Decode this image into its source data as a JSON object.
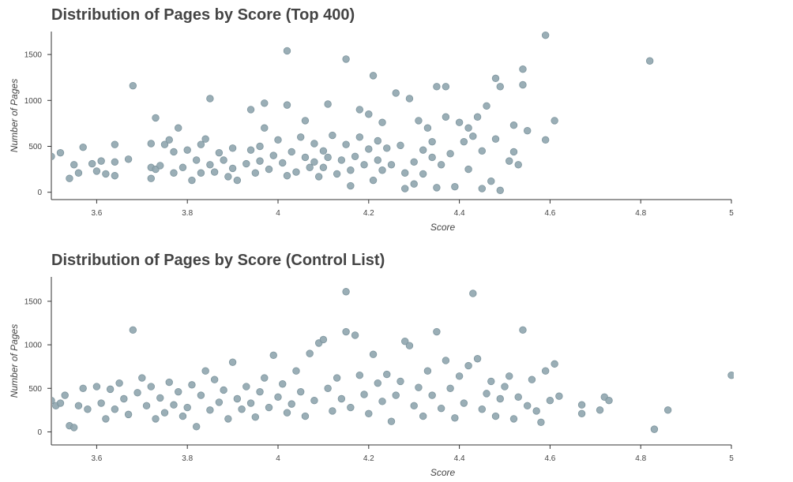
{
  "chart_data": [
    {
      "type": "scatter",
      "title": "Distribution of Pages by Score (Top 400)",
      "xlabel": "Score",
      "ylabel": "Number of Pages",
      "xlim": [
        3.5,
        5.0
      ],
      "ylim": [
        -80,
        1750
      ],
      "x_ticks": [
        3.6,
        3.8,
        4.0,
        4.2,
        4.4,
        4.6,
        4.8,
        5.0
      ],
      "x_tick_labels": [
        "3.6",
        "3.8",
        "4",
        "4.2",
        "4.4",
        "4.6",
        "4.8",
        "5"
      ],
      "y_ticks": [
        0,
        500,
        1000,
        1500
      ],
      "y_tick_labels": [
        "0",
        "500",
        "1000",
        "1500"
      ],
      "grid": false,
      "marker_color": "#8fa5ae",
      "marker_edge_color": "#7e959e",
      "points": [
        [
          3.5,
          390
        ],
        [
          3.52,
          430
        ],
        [
          3.54,
          150
        ],
        [
          3.55,
          300
        ],
        [
          3.56,
          210
        ],
        [
          3.57,
          490
        ],
        [
          3.59,
          310
        ],
        [
          3.6,
          230
        ],
        [
          3.61,
          340
        ],
        [
          3.62,
          200
        ],
        [
          3.64,
          520
        ],
        [
          3.64,
          330
        ],
        [
          3.64,
          180
        ],
        [
          3.67,
          360
        ],
        [
          3.68,
          1160
        ],
        [
          3.72,
          530
        ],
        [
          3.72,
          270
        ],
        [
          3.72,
          150
        ],
        [
          3.73,
          810
        ],
        [
          3.73,
          250
        ],
        [
          3.74,
          290
        ],
        [
          3.75,
          520
        ],
        [
          3.76,
          570
        ],
        [
          3.77,
          210
        ],
        [
          3.77,
          440
        ],
        [
          3.78,
          700
        ],
        [
          3.79,
          270
        ],
        [
          3.8,
          460
        ],
        [
          3.81,
          130
        ],
        [
          3.82,
          350
        ],
        [
          3.83,
          210
        ],
        [
          3.83,
          520
        ],
        [
          3.84,
          580
        ],
        [
          3.85,
          1020
        ],
        [
          3.85,
          300
        ],
        [
          3.86,
          220
        ],
        [
          3.87,
          430
        ],
        [
          3.88,
          350
        ],
        [
          3.89,
          170
        ],
        [
          3.9,
          480
        ],
        [
          3.9,
          260
        ],
        [
          3.91,
          130
        ],
        [
          3.93,
          310
        ],
        [
          3.94,
          900
        ],
        [
          3.94,
          460
        ],
        [
          3.95,
          210
        ],
        [
          3.96,
          340
        ],
        [
          3.96,
          500
        ],
        [
          3.97,
          970
        ],
        [
          3.97,
          700
        ],
        [
          3.98,
          250
        ],
        [
          3.99,
          400
        ],
        [
          4.0,
          570
        ],
        [
          4.01,
          320
        ],
        [
          4.02,
          1540
        ],
        [
          4.02,
          950
        ],
        [
          4.02,
          180
        ],
        [
          4.03,
          440
        ],
        [
          4.04,
          220
        ],
        [
          4.05,
          600
        ],
        [
          4.06,
          380
        ],
        [
          4.06,
          780
        ],
        [
          4.07,
          270
        ],
        [
          4.08,
          530
        ],
        [
          4.08,
          330
        ],
        [
          4.09,
          170
        ],
        [
          4.1,
          450
        ],
        [
          4.1,
          270
        ],
        [
          4.11,
          960
        ],
        [
          4.11,
          380
        ],
        [
          4.12,
          620
        ],
        [
          4.13,
          200
        ],
        [
          4.14,
          350
        ],
        [
          4.15,
          1450
        ],
        [
          4.15,
          520
        ],
        [
          4.16,
          240
        ],
        [
          4.16,
          70
        ],
        [
          4.17,
          390
        ],
        [
          4.18,
          900
        ],
        [
          4.18,
          600
        ],
        [
          4.19,
          300
        ],
        [
          4.2,
          470
        ],
        [
          4.2,
          850
        ],
        [
          4.21,
          130
        ],
        [
          4.21,
          1270
        ],
        [
          4.22,
          560
        ],
        [
          4.22,
          350
        ],
        [
          4.23,
          240
        ],
        [
          4.23,
          760
        ],
        [
          4.24,
          480
        ],
        [
          4.25,
          300
        ],
        [
          4.26,
          1080
        ],
        [
          4.27,
          510
        ],
        [
          4.28,
          210
        ],
        [
          4.28,
          40
        ],
        [
          4.29,
          1020
        ],
        [
          4.3,
          330
        ],
        [
          4.3,
          90
        ],
        [
          4.31,
          780
        ],
        [
          4.32,
          460
        ],
        [
          4.32,
          200
        ],
        [
          4.33,
          700
        ],
        [
          4.34,
          380
        ],
        [
          4.34,
          550
        ],
        [
          4.35,
          1150
        ],
        [
          4.35,
          50
        ],
        [
          4.36,
          300
        ],
        [
          4.37,
          820
        ],
        [
          4.37,
          1150
        ],
        [
          4.38,
          420
        ],
        [
          4.39,
          60
        ],
        [
          4.4,
          760
        ],
        [
          4.41,
          550
        ],
        [
          4.42,
          250
        ],
        [
          4.42,
          700
        ],
        [
          4.43,
          610
        ],
        [
          4.44,
          820
        ],
        [
          4.45,
          450
        ],
        [
          4.45,
          40
        ],
        [
          4.46,
          940
        ],
        [
          4.47,
          120
        ],
        [
          4.48,
          1240
        ],
        [
          4.48,
          580
        ],
        [
          4.49,
          1150
        ],
        [
          4.49,
          20
        ],
        [
          4.51,
          340
        ],
        [
          4.52,
          730
        ],
        [
          4.52,
          440
        ],
        [
          4.53,
          300
        ],
        [
          4.54,
          1340
        ],
        [
          4.54,
          1170
        ],
        [
          4.55,
          670
        ],
        [
          4.59,
          1710
        ],
        [
          4.59,
          570
        ],
        [
          4.61,
          780
        ],
        [
          4.82,
          1430
        ]
      ]
    },
    {
      "type": "scatter",
      "title": "Distribution of Pages by Score (Control List)",
      "xlabel": "Score",
      "ylabel": "Number of Pages",
      "xlim": [
        3.5,
        5.0
      ],
      "ylim": [
        -150,
        1780
      ],
      "x_ticks": [
        3.6,
        3.8,
        4.0,
        4.2,
        4.4,
        4.6,
        4.8,
        5.0
      ],
      "x_tick_labels": [
        "3.6",
        "3.8",
        "4",
        "4.2",
        "4.4",
        "4.6",
        "4.8",
        "5"
      ],
      "y_ticks": [
        0,
        500,
        1000,
        1500
      ],
      "y_tick_labels": [
        "0",
        "500",
        "1000",
        "1500"
      ],
      "grid": false,
      "marker_color": "#8fa5ae",
      "marker_edge_color": "#7e959e",
      "points": [
        [
          3.5,
          360
        ],
        [
          3.51,
          300
        ],
        [
          3.52,
          330
        ],
        [
          3.53,
          420
        ],
        [
          3.54,
          70
        ],
        [
          3.55,
          50
        ],
        [
          3.56,
          300
        ],
        [
          3.57,
          500
        ],
        [
          3.58,
          260
        ],
        [
          3.6,
          520
        ],
        [
          3.61,
          330
        ],
        [
          3.62,
          150
        ],
        [
          3.63,
          490
        ],
        [
          3.64,
          260
        ],
        [
          3.65,
          560
        ],
        [
          3.66,
          380
        ],
        [
          3.67,
          200
        ],
        [
          3.68,
          1170
        ],
        [
          3.69,
          450
        ],
        [
          3.7,
          620
        ],
        [
          3.71,
          300
        ],
        [
          3.72,
          520
        ],
        [
          3.73,
          150
        ],
        [
          3.74,
          390
        ],
        [
          3.75,
          220
        ],
        [
          3.76,
          570
        ],
        [
          3.77,
          310
        ],
        [
          3.78,
          460
        ],
        [
          3.79,
          180
        ],
        [
          3.8,
          280
        ],
        [
          3.81,
          540
        ],
        [
          3.82,
          60
        ],
        [
          3.83,
          420
        ],
        [
          3.84,
          700
        ],
        [
          3.85,
          250
        ],
        [
          3.86,
          600
        ],
        [
          3.87,
          340
        ],
        [
          3.88,
          480
        ],
        [
          3.89,
          150
        ],
        [
          3.9,
          800
        ],
        [
          3.91,
          380
        ],
        [
          3.92,
          260
        ],
        [
          3.93,
          520
        ],
        [
          3.94,
          330
        ],
        [
          3.95,
          170
        ],
        [
          3.96,
          460
        ],
        [
          3.97,
          620
        ],
        [
          3.98,
          280
        ],
        [
          3.99,
          880
        ],
        [
          4.0,
          400
        ],
        [
          4.01,
          550
        ],
        [
          4.02,
          220
        ],
        [
          4.03,
          320
        ],
        [
          4.04,
          700
        ],
        [
          4.05,
          460
        ],
        [
          4.06,
          180
        ],
        [
          4.07,
          900
        ],
        [
          4.08,
          360
        ],
        [
          4.09,
          1020
        ],
        [
          4.1,
          1060
        ],
        [
          4.11,
          500
        ],
        [
          4.12,
          240
        ],
        [
          4.13,
          620
        ],
        [
          4.14,
          380
        ],
        [
          4.15,
          1610
        ],
        [
          4.15,
          1150
        ],
        [
          4.16,
          280
        ],
        [
          4.17,
          1110
        ],
        [
          4.18,
          650
        ],
        [
          4.19,
          430
        ],
        [
          4.2,
          210
        ],
        [
          4.21,
          890
        ],
        [
          4.22,
          560
        ],
        [
          4.23,
          350
        ],
        [
          4.24,
          660
        ],
        [
          4.25,
          120
        ],
        [
          4.26,
          420
        ],
        [
          4.27,
          580
        ],
        [
          4.28,
          1040
        ],
        [
          4.29,
          990
        ],
        [
          4.3,
          300
        ],
        [
          4.31,
          510
        ],
        [
          4.32,
          180
        ],
        [
          4.33,
          700
        ],
        [
          4.34,
          420
        ],
        [
          4.35,
          1150
        ],
        [
          4.36,
          270
        ],
        [
          4.37,
          820
        ],
        [
          4.38,
          500
        ],
        [
          4.39,
          160
        ],
        [
          4.4,
          640
        ],
        [
          4.41,
          330
        ],
        [
          4.42,
          760
        ],
        [
          4.43,
          1590
        ],
        [
          4.44,
          840
        ],
        [
          4.45,
          260
        ],
        [
          4.46,
          440
        ],
        [
          4.47,
          580
        ],
        [
          4.48,
          180
        ],
        [
          4.49,
          380
        ],
        [
          4.5,
          520
        ],
        [
          4.51,
          640
        ],
        [
          4.52,
          150
        ],
        [
          4.53,
          400
        ],
        [
          4.54,
          1170
        ],
        [
          4.55,
          300
        ],
        [
          4.56,
          600
        ],
        [
          4.57,
          240
        ],
        [
          4.58,
          110
        ],
        [
          4.59,
          700
        ],
        [
          4.6,
          360
        ],
        [
          4.61,
          780
        ],
        [
          4.62,
          410
        ],
        [
          4.67,
          310
        ],
        [
          4.67,
          210
        ],
        [
          4.71,
          250
        ],
        [
          4.72,
          400
        ],
        [
          4.73,
          360
        ],
        [
          4.83,
          30
        ],
        [
          4.86,
          250
        ],
        [
          5.0,
          650
        ]
      ]
    }
  ]
}
